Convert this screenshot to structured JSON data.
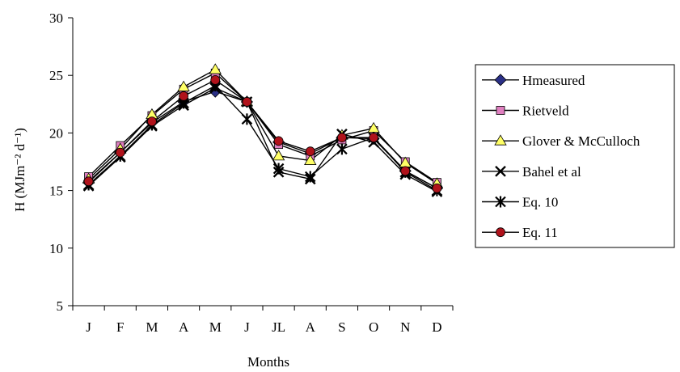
{
  "chart_data": {
    "type": "line",
    "title": "",
    "xlabel": "Months",
    "ylabel": "H (MJm⁻² d⁻¹)",
    "ylim": [
      5,
      30
    ],
    "yticks": [
      5,
      10,
      15,
      20,
      25,
      30
    ],
    "grid": false,
    "legend": "right",
    "categories": [
      "J",
      "F",
      "M",
      "A",
      "M",
      "J",
      "JL",
      "A",
      "S",
      "O",
      "N",
      "D"
    ],
    "series": [
      {
        "name": "Hmeasured",
        "marker": "diamond",
        "color": "#2a2f86",
        "values": [
          15.7,
          18.3,
          20.9,
          22.7,
          23.6,
          22.7,
          19.2,
          18.2,
          19.6,
          19.5,
          16.7,
          15.2
        ]
      },
      {
        "name": "Rietveld",
        "marker": "square",
        "color": "#e07fc0",
        "values": [
          16.2,
          18.9,
          21.5,
          23.8,
          25.2,
          22.7,
          19.0,
          18.0,
          19.4,
          20.2,
          17.5,
          15.7
        ]
      },
      {
        "name": "Glover & McCulloch",
        "marker": "triangle",
        "color": "#ffff66",
        "values": [
          16.0,
          18.6,
          21.6,
          24.0,
          25.5,
          22.7,
          18.0,
          17.6,
          19.8,
          20.4,
          17.4,
          15.6
        ]
      },
      {
        "name": "Bahel et al",
        "marker": "x",
        "color": "#000000",
        "values": [
          15.4,
          17.9,
          20.6,
          22.4,
          23.9,
          22.7,
          16.6,
          16.0,
          19.9,
          19.2,
          16.4,
          14.9
        ]
      },
      {
        "name": "Eq. 10",
        "marker": "star",
        "color": "#000000",
        "values": [
          15.5,
          18.0,
          20.7,
          22.6,
          24.1,
          21.2,
          16.9,
          16.2,
          18.6,
          19.6,
          16.6,
          15.0
        ]
      },
      {
        "name": "Eq. 11",
        "marker": "circle",
        "color": "#b0121b",
        "values": [
          15.8,
          18.3,
          21.0,
          23.2,
          24.6,
          22.7,
          19.3,
          18.4,
          19.6,
          19.6,
          16.7,
          15.2
        ]
      }
    ]
  }
}
